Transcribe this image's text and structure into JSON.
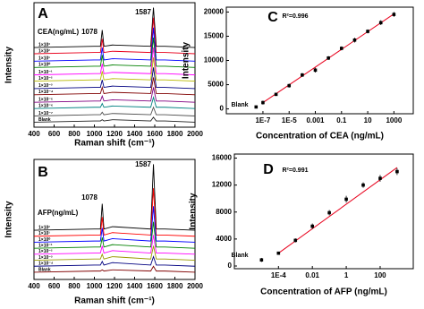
{
  "chart_data": [
    {
      "type": "line",
      "panel_label": "A",
      "legend_title": "CEA(ng/mL)",
      "annotations": [
        "1078",
        "1587"
      ],
      "xlabel": "Raman shift (cm⁻¹)",
      "ylabel": "Intensity",
      "x": [
        400,
        1000,
        1060,
        1078,
        1095,
        1180,
        1560,
        1587,
        1615,
        1700,
        2000
      ],
      "xlim": [
        400,
        2000
      ],
      "xticks": [
        400,
        600,
        800,
        1000,
        1200,
        1400,
        1600,
        1800,
        2000
      ],
      "ylim": [
        0,
        100
      ],
      "series": [
        {
          "name": "1×10³",
          "color": "#000000",
          "values": [
            64,
            65,
            65,
            78,
            65,
            66,
            65,
            96,
            65,
            65,
            64
          ]
        },
        {
          "name": "1×10²",
          "color": "#e8001c",
          "values": [
            59,
            60,
            60,
            71,
            60,
            61,
            60,
            88,
            60,
            60,
            59
          ]
        },
        {
          "name": "1×10¹",
          "color": "#0000ff",
          "values": [
            53,
            54,
            54,
            64,
            54,
            55,
            54,
            80,
            54,
            54,
            53
          ]
        },
        {
          "name": "1×10⁰",
          "color": "#008000",
          "values": [
            48,
            49,
            49,
            58,
            49,
            50,
            49,
            72,
            49,
            49,
            48
          ]
        },
        {
          "name": "1×10⁻¹",
          "color": "#ff00ff",
          "values": [
            42,
            43,
            43,
            51,
            43,
            44,
            43,
            64,
            43,
            43,
            42
          ]
        },
        {
          "name": "1×10⁻²",
          "color": "#b8b800",
          "values": [
            37,
            38,
            38,
            45,
            38,
            39,
            38,
            56,
            38,
            38,
            37
          ]
        },
        {
          "name": "1×10⁻³",
          "color": "#000080",
          "values": [
            31,
            32,
            32,
            38,
            32,
            33,
            32,
            48,
            32,
            32,
            31
          ]
        },
        {
          "name": "1×10⁻⁴",
          "color": "#800000",
          "values": [
            26,
            27,
            27,
            32,
            27,
            28,
            27,
            40,
            27,
            27,
            26
          ]
        },
        {
          "name": "1×10⁻⁵",
          "color": "#800080",
          "values": [
            20,
            21,
            21,
            25,
            21,
            22,
            21,
            32,
            21,
            21,
            20
          ]
        },
        {
          "name": "1×10⁻⁶",
          "color": "#008080",
          "values": [
            15,
            16,
            16,
            19,
            16,
            17,
            16,
            24,
            16,
            16,
            15
          ]
        },
        {
          "name": "1×10⁻⁷",
          "color": "#505050",
          "values": [
            9,
            10,
            10,
            12,
            10,
            11,
            10,
            16,
            10,
            10,
            9
          ]
        },
        {
          "name": "Blank",
          "color": "#202020",
          "values": [
            4,
            5,
            5,
            6,
            5,
            6,
            5,
            8,
            5,
            5,
            4
          ]
        }
      ]
    },
    {
      "type": "line",
      "panel_label": "B",
      "legend_title": "AFP(ng/mL)",
      "annotations": [
        "1078",
        "1587"
      ],
      "xlabel": "Raman shift (cm⁻¹)",
      "ylabel": "Intensity",
      "x": [
        400,
        1000,
        1060,
        1078,
        1095,
        1180,
        1560,
        1587,
        1615,
        1700,
        2000
      ],
      "xlim": [
        400,
        2000
      ],
      "xticks": [
        400,
        600,
        800,
        1000,
        1200,
        1400,
        1600,
        1800,
        2000
      ],
      "ylim": [
        0,
        100
      ],
      "series": [
        {
          "name": "1×10²",
          "color": "#000000",
          "values": [
            41,
            42,
            42,
            63,
            42,
            44,
            42,
            96,
            42,
            42,
            41
          ]
        },
        {
          "name": "1×10¹",
          "color": "#ff0000",
          "values": [
            36,
            37,
            37,
            52,
            37,
            39,
            37,
            76,
            37,
            37,
            36
          ]
        },
        {
          "name": "1×10⁰",
          "color": "#0000ff",
          "values": [
            31,
            32,
            32,
            43,
            32,
            34,
            32,
            61,
            32,
            32,
            31
          ]
        },
        {
          "name": "1×10⁻¹",
          "color": "#008000",
          "values": [
            26,
            27,
            27,
            35,
            27,
            29,
            27,
            48,
            27,
            27,
            26
          ]
        },
        {
          "name": "1×10⁻²",
          "color": "#ff00ff",
          "values": [
            21,
            22,
            22,
            28,
            22,
            24,
            22,
            37,
            22,
            22,
            21
          ]
        },
        {
          "name": "1×10⁻³",
          "color": "#9a9a00",
          "values": [
            16,
            17,
            17,
            21,
            17,
            19,
            17,
            28,
            17,
            17,
            16
          ]
        },
        {
          "name": "1×10⁻⁴",
          "color": "#000080",
          "values": [
            11,
            12,
            12,
            15,
            12,
            14,
            12,
            19,
            12,
            12,
            11
          ]
        },
        {
          "name": "Blank",
          "color": "#800000",
          "values": [
            6,
            7,
            7,
            8,
            7,
            8,
            7,
            11,
            7,
            7,
            6
          ]
        }
      ]
    },
    {
      "type": "scatter",
      "panel_label": "C",
      "annotations": [
        "R²=0.996",
        "Blank"
      ],
      "log_x": true,
      "xlabel": "Concentration of CEA (ng/mL)",
      "ylabel": "Intensity",
      "x": [
        3e-08,
        1e-07,
        1e-06,
        1e-05,
        0.0001,
        0.001,
        0.01,
        0.1,
        1,
        10,
        100,
        1000
      ],
      "values": [
        400,
        1300,
        3000,
        4800,
        7000,
        8000,
        10500,
        12500,
        14200,
        16000,
        17800,
        19500
      ],
      "errors": [
        300,
        400,
        300,
        400,
        400,
        500,
        400,
        400,
        500,
        400,
        500,
        500
      ],
      "color": "#000000",
      "fit": {
        "x": [
          1e-07,
          1000
        ],
        "y": [
          1300,
          19600
        ],
        "color": "#e8001c"
      },
      "xlim": [
        1.6e-10,
        30000
      ],
      "ylim": [
        -1000,
        21000
      ],
      "xticks": [
        {
          "value": 1e-07,
          "label": "1E-7"
        },
        {
          "value": 1e-05,
          "label": "1E-5"
        },
        0.001,
        0.1,
        10,
        1000
      ],
      "yticks": [
        0,
        5000,
        10000,
        15000,
        20000
      ]
    },
    {
      "type": "scatter",
      "panel_label": "D",
      "annotations": [
        "R²=0.991",
        "Blank"
      ],
      "log_x": true,
      "xlabel": "Concentration of AFP (ng/mL)",
      "ylabel": "Intensity",
      "x": [
        1e-05,
        0.0001,
        0.001,
        0.01,
        0.1,
        1,
        10,
        100,
        1000
      ],
      "values": [
        900,
        1900,
        3800,
        5900,
        7900,
        9900,
        12000,
        13000,
        14000
      ],
      "errors": [
        300,
        200,
        300,
        400,
        400,
        500,
        400,
        500,
        500
      ],
      "color": "#000000",
      "fit": {
        "x": [
          0.0001,
          1000
        ],
        "y": [
          1900,
          14600
        ],
        "color": "#e8001c"
      },
      "xlim": [
        2.5e-07,
        9000
      ],
      "ylim": [
        -400,
        16600
      ],
      "xticks": [
        {
          "value": 0.0001,
          "label": "1E-4"
        },
        0.01,
        1,
        100
      ],
      "yticks": [
        0,
        4000,
        8000,
        12000,
        16000
      ]
    }
  ]
}
